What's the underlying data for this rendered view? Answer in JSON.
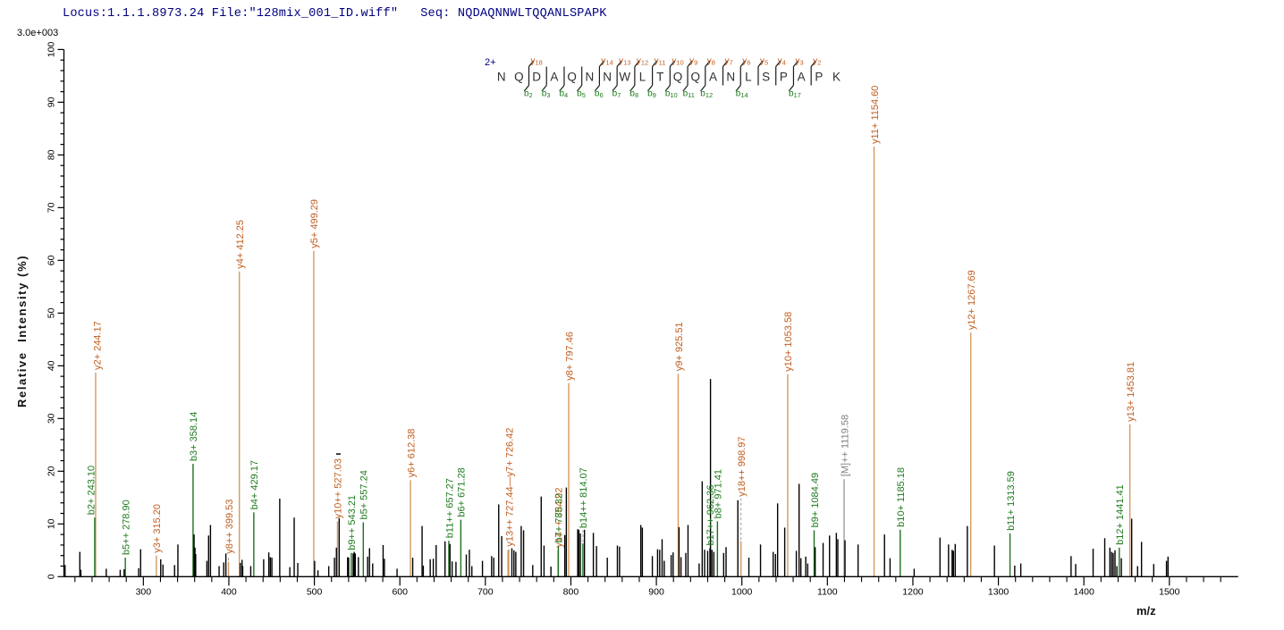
{
  "header": {
    "text": "Locus:1.1.1.8973.24 File:\"128mix_001_ID.wiff\"   Seq: NQDAQNNWLTQQANLSPAPK"
  },
  "colors": {
    "header_text": "#000080",
    "y_ion_line": "#d19a62",
    "y_ion_label": "#c05e20",
    "b_ion_line": "#1e7020",
    "b_ion_label": "#1e7b1e",
    "precursor_line": "#9a9a9a",
    "precursor_label": "#808080",
    "unassigned_line": "#000000",
    "axis": "#000000",
    "residue_text": "#2f2f2f",
    "charge_label": "#000080"
  },
  "peptide_ladder": {
    "charge_label": "2+",
    "sequence": "NQDAQNNWLTQQANLSPAPK",
    "cleavages": [
      {
        "after": 2,
        "y": "y18",
        "b": "b2"
      },
      {
        "after": 3,
        "b": "b3"
      },
      {
        "after": 4,
        "b": "b4"
      },
      {
        "after": 5,
        "b": "b5"
      },
      {
        "after": 6,
        "y": "y14",
        "b": "b6"
      },
      {
        "after": 7,
        "y": "y13",
        "b": "b7"
      },
      {
        "after": 8,
        "y": "y12",
        "b": "b8"
      },
      {
        "after": 9,
        "y": "y11",
        "b": "b9"
      },
      {
        "after": 10,
        "y": "y10",
        "b": "b10"
      },
      {
        "after": 11,
        "y": "y9",
        "b": "b11"
      },
      {
        "after": 12,
        "y": "y8",
        "b": "b12"
      },
      {
        "after": 13,
        "y": "y7"
      },
      {
        "after": 14,
        "y": "y6",
        "b": "b14"
      },
      {
        "after": 15,
        "y": "y5"
      },
      {
        "after": 16,
        "y": "y4"
      },
      {
        "after": 17,
        "y": "y3",
        "b": "b17"
      },
      {
        "after": 18,
        "y": "y2"
      }
    ]
  },
  "chart_data": {
    "type": "bar",
    "subtype": "ms2-spectrum",
    "title": "",
    "xlabel": "m/z",
    "ylabel": "Relative  Intensity (%)",
    "intensity_scale_label": "3.0e+003",
    "xlim": [
      207.1,
      1580.4
    ],
    "ylim": [
      0,
      100
    ],
    "x_major_ticks": [
      300,
      400,
      500,
      600,
      700,
      800,
      900,
      1000,
      1100,
      1200,
      1300,
      1400,
      1500
    ],
    "x_minor_step": 20,
    "x_minor_range": [
      220,
      1560
    ],
    "y_major_step": 10,
    "y_minor_step": 2,
    "grid": false,
    "legend": false,
    "series": [
      {
        "name": "y-ions",
        "color_key": "y",
        "peaks": [
          {
            "mz": 244.17,
            "intensity": 38.7,
            "label": "y2+ 244.17",
            "label_dx": 1.5
          },
          {
            "mz": 315.2,
            "intensity": 4.0,
            "label": "y3+ 315.20"
          },
          {
            "mz": 399.53,
            "intensity": 2.8,
            "label": "y8++ 399.53",
            "lift": 6,
            "dash": true
          },
          {
            "mz": 412.25,
            "intensity": 57.9,
            "label": "y4+ 412.25"
          },
          {
            "mz": 499.29,
            "intensity": 61.8,
            "label": "y5+ 499.29"
          },
          {
            "mz": 527.03,
            "intensity": 10.5,
            "label": "y10++ 527.03",
            "topdash": true
          },
          {
            "mz": 612.38,
            "intensity": 18.3,
            "label": "y6+ 612.38"
          },
          {
            "mz": 726.42,
            "intensity": 5.0
          },
          {
            "mz": 727.44,
            "intensity": 5.2,
            "label": "y13++ 727.44—y7+ 726.42"
          },
          {
            "mz": 784.92,
            "intensity": 5.0,
            "label": "y14++ 784.92"
          },
          {
            "mz": 797.46,
            "intensity": 36.7,
            "label": "y8+ 797.46"
          },
          {
            "mz": 925.51,
            "intensity": 38.5,
            "label": "y9+ 925.51"
          },
          {
            "mz": 998.97,
            "intensity": 6.7,
            "label": "y18++ 998.97",
            "lift": 47,
            "dash": true
          },
          {
            "mz": 1053.58,
            "intensity": 38.4,
            "label": "y10+ 1053.58"
          },
          {
            "mz": 1154.6,
            "intensity": 81.6,
            "label": "y11+ 1154.60"
          },
          {
            "mz": 1267.69,
            "intensity": 46.3,
            "label": "y12+ 1267.69"
          },
          {
            "mz": 1453.81,
            "intensity": 28.9,
            "label": "y13+ 1453.81"
          }
        ]
      },
      {
        "name": "b-ions",
        "color_key": "b",
        "peaks": [
          {
            "mz": 243.1,
            "intensity": 11.2,
            "label": "b2+ 243.10",
            "label_dx": -4.5
          },
          {
            "mz": 278.9,
            "intensity": 3.6,
            "label": "b5++ 278.90"
          },
          {
            "mz": 358.14,
            "intensity": 21.4,
            "label": "b3+ 358.14"
          },
          {
            "mz": 429.17,
            "intensity": 12.2,
            "label": "b4+ 429.17"
          },
          {
            "mz": 543.21,
            "intensity": 4.5,
            "label": "b9++ 543.21"
          },
          {
            "mz": 557.24,
            "intensity": 10.3,
            "label": "b5+ 557.24"
          },
          {
            "mz": 657.27,
            "intensity": 6.8,
            "label": "b11++ 657.27"
          },
          {
            "mz": 671.28,
            "intensity": 10.8,
            "label": "b6+ 671.28"
          },
          {
            "mz": 785.32,
            "intensity": 5.9,
            "label": "b7+ 785.32"
          },
          {
            "mz": 814.07,
            "intensity": 6.3,
            "label": "b14++ 814.07",
            "lift": 14,
            "dash": true
          },
          {
            "mz": 962.36,
            "intensity": 5.4,
            "label": "b17++ 962.36"
          },
          {
            "mz": 971.41,
            "intensity": 10.5,
            "label": "b8+ 971.41"
          },
          {
            "mz": 1084.49,
            "intensity": 8.8,
            "label": "b9+ 1084.49"
          },
          {
            "mz": 1185.18,
            "intensity": 8.9,
            "label": "b10+ 1185.18"
          },
          {
            "mz": 1313.59,
            "intensity": 8.2,
            "label": "b11+ 1313.59"
          },
          {
            "mz": 1441.41,
            "intensity": 5.5,
            "label": "b12+ 1441.41"
          }
        ]
      },
      {
        "name": "precursor",
        "color_key": "M",
        "peaks": [
          {
            "mz": 1119.58,
            "intensity": 18.5,
            "label": "[M]++ 1119.58"
          }
        ]
      },
      {
        "name": "unassigned",
        "color_key": "black",
        "peaks": [
          [
            208.4,
            2.2
          ],
          [
            225.7,
            4.7
          ],
          [
            226.9,
            1.3
          ],
          [
            256.6,
            1.5
          ],
          [
            272.9,
            1.3
          ],
          [
            277.5,
            1.4
          ],
          [
            294.5,
            1.6
          ],
          [
            296.8,
            5.2
          ],
          [
            320.3,
            3.3
          ],
          [
            322.9,
            2.3
          ],
          [
            336.5,
            2.2
          ],
          [
            340.4,
            6.1
          ],
          [
            359.3,
            8.0
          ],
          [
            360.4,
            5.5
          ],
          [
            361.2,
            4.3
          ],
          [
            374.3,
            3.0
          ],
          [
            376.3,
            7.8
          ],
          [
            378.5,
            9.8
          ],
          [
            388.6,
            2.0
          ],
          [
            394.0,
            2.7
          ],
          [
            396.5,
            4.4
          ],
          [
            413.4,
            2.6
          ],
          [
            415.4,
            3.2
          ],
          [
            416.2,
            2.0
          ],
          [
            425.6,
            2.0
          ],
          [
            440.7,
            3.3
          ],
          [
            446.7,
            4.6
          ],
          [
            448.5,
            3.7
          ],
          [
            450.3,
            3.6
          ],
          [
            459.5,
            14.8
          ],
          [
            471.3,
            1.8
          ],
          [
            476.4,
            11.2
          ],
          [
            480.6,
            2.6
          ],
          [
            500.3,
            3.0
          ],
          [
            504.2,
            1.2
          ],
          [
            516.8,
            2.0
          ],
          [
            523.5,
            3.6
          ],
          [
            525.8,
            5.5
          ],
          [
            529.0,
            11.1
          ],
          [
            538.9,
            3.7
          ],
          [
            540.1,
            3.6
          ],
          [
            545.4,
            4.4
          ],
          [
            546.6,
            4.7
          ],
          [
            547.8,
            4.4
          ],
          [
            551.5,
            3.7
          ],
          [
            562.3,
            3.8
          ],
          [
            564.5,
            5.4
          ],
          [
            568.2,
            2.5
          ],
          [
            580.4,
            6.0
          ],
          [
            581.9,
            3.4
          ],
          [
            596.7,
            1.5
          ],
          [
            615.0,
            3.6
          ],
          [
            626.0,
            9.6
          ],
          [
            627.4,
            2.1
          ],
          [
            635.5,
            3.3
          ],
          [
            639.1,
            3.4
          ],
          [
            642.4,
            6.0
          ],
          [
            652.8,
            6.7
          ],
          [
            658.6,
            6.2
          ],
          [
            661.1,
            2.9
          ],
          [
            665.6,
            2.8
          ],
          [
            677.7,
            4.2
          ],
          [
            681.3,
            5.1
          ],
          [
            684.2,
            2.0
          ],
          [
            696.6,
            3.0
          ],
          [
            707.3,
            3.9
          ],
          [
            709.8,
            3.6
          ],
          [
            715.6,
            13.7
          ],
          [
            719.1,
            7.7
          ],
          [
            731.0,
            5.4
          ],
          [
            733.4,
            5.0
          ],
          [
            735.6,
            4.7
          ],
          [
            741.9,
            9.6
          ],
          [
            744.7,
            8.8
          ],
          [
            755.4,
            2.2
          ],
          [
            765.3,
            15.2
          ],
          [
            768.6,
            5.9
          ],
          [
            776.7,
            1.9
          ],
          [
            792.9,
            7.9
          ],
          [
            794.7,
            16.9
          ],
          [
            808.0,
            9.0
          ],
          [
            809.3,
            8.9
          ],
          [
            811.1,
            8.2
          ],
          [
            815.9,
            8.9
          ],
          [
            826.3,
            8.3
          ],
          [
            830.0,
            5.8
          ],
          [
            842.6,
            3.6
          ],
          [
            854.4,
            5.9
          ],
          [
            856.9,
            5.7
          ],
          [
            881.8,
            9.8
          ],
          [
            883.6,
            9.3
          ],
          [
            895.3,
            3.9
          ],
          [
            901.4,
            5.2
          ],
          [
            903.9,
            5.1
          ],
          [
            906.7,
            7.1
          ],
          [
            909.2,
            3.0
          ],
          [
            917.3,
            4.1
          ],
          [
            919.6,
            4.6
          ],
          [
            926.5,
            9.4
          ],
          [
            928.8,
            3.7
          ],
          [
            934.4,
            4.5
          ],
          [
            937.0,
            9.8
          ],
          [
            950.0,
            2.5
          ],
          [
            953.6,
            18.1
          ],
          [
            956.4,
            5.1
          ],
          [
            960.0,
            4.9
          ],
          [
            963.3,
            37.5
          ],
          [
            965.0,
            5.1
          ],
          [
            967.2,
            4.7
          ],
          [
            978.7,
            4.5
          ],
          [
            981.5,
            5.6
          ],
          [
            995.3,
            14.5
          ],
          [
            1008.2,
            3.6
          ],
          [
            1021.8,
            6.1
          ],
          [
            1036.6,
            4.7
          ],
          [
            1039.3,
            4.3
          ],
          [
            1041.8,
            13.9
          ],
          [
            1050.1,
            9.3
          ],
          [
            1063.7,
            4.9
          ],
          [
            1066.9,
            17.6
          ],
          [
            1069.0,
            3.5
          ],
          [
            1074.7,
            3.8
          ],
          [
            1077.0,
            2.5
          ],
          [
            1085.7,
            5.6
          ],
          [
            1095.0,
            6.4
          ],
          [
            1102.5,
            7.8
          ],
          [
            1110.5,
            8.3
          ],
          [
            1112.2,
            7.1
          ],
          [
            1120.6,
            6.9
          ],
          [
            1135.9,
            6.1
          ],
          [
            1166.8,
            8.0
          ],
          [
            1173.3,
            3.5
          ],
          [
            1201.5,
            1.5
          ],
          [
            1231.7,
            7.4
          ],
          [
            1241.7,
            6.1
          ],
          [
            1245.9,
            5.1
          ],
          [
            1247.4,
            4.9
          ],
          [
            1249.5,
            6.2
          ],
          [
            1263.7,
            9.6
          ],
          [
            1295.4,
            5.9
          ],
          [
            1319.1,
            2.1
          ],
          [
            1326.2,
            2.5
          ],
          [
            1385.0,
            3.9
          ],
          [
            1390.4,
            2.4
          ],
          [
            1410.8,
            5.3
          ],
          [
            1424.4,
            7.3
          ],
          [
            1430.4,
            5.5
          ],
          [
            1432.5,
            4.7
          ],
          [
            1434.3,
            4.5
          ],
          [
            1436.4,
            5.0
          ],
          [
            1438.6,
            2.0
          ],
          [
            1443.8,
            3.5
          ],
          [
            1455.9,
            11.0
          ],
          [
            1462.8,
            2.0
          ],
          [
            1467.4,
            6.6
          ],
          [
            1481.7,
            2.4
          ],
          [
            1496.6,
            3.0
          ],
          [
            1498.4,
            3.8
          ]
        ]
      }
    ]
  }
}
